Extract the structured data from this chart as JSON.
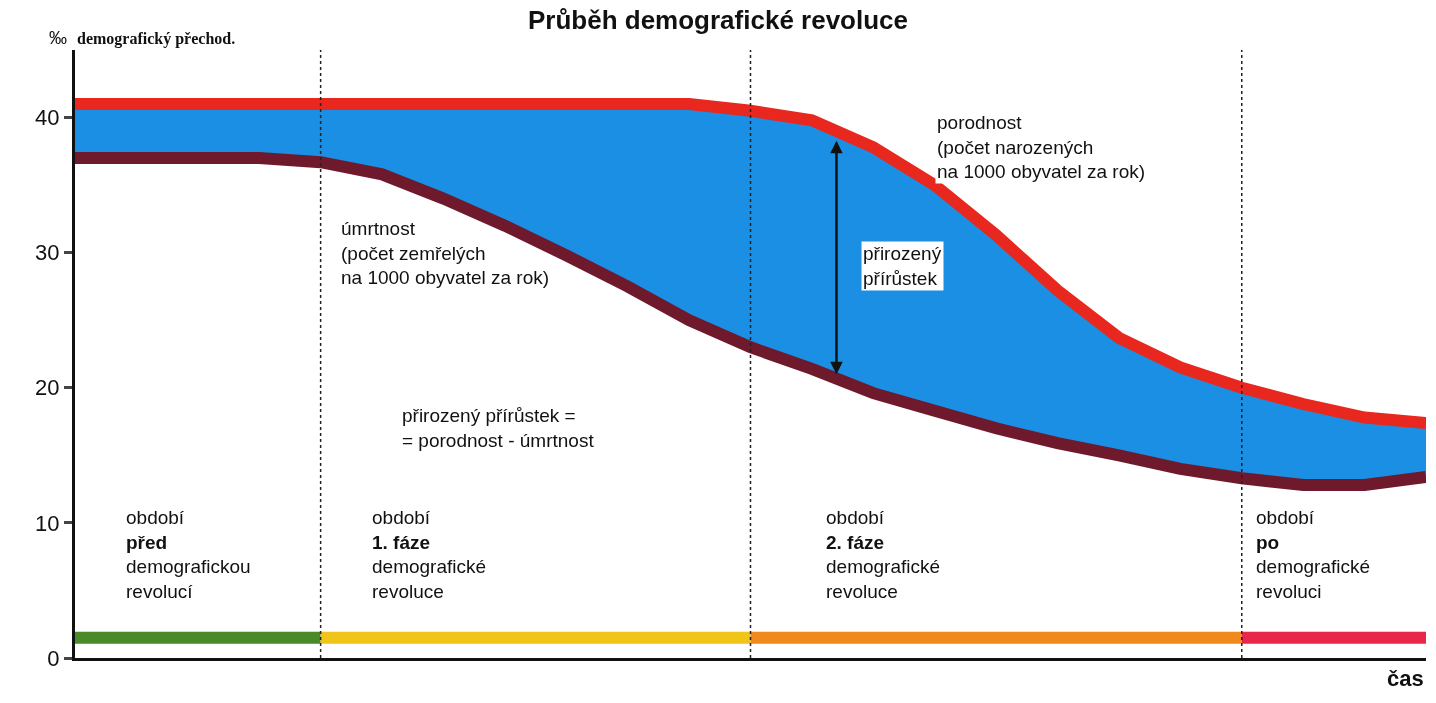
{
  "chart_data": {
    "type": "line",
    "title": "Průběh demografické revoluce",
    "ylabel": "‰",
    "xlabel": "čas",
    "categories": [
      null,
      null,
      null,
      null,
      null,
      null,
      null,
      null,
      null,
      null,
      null,
      null,
      null,
      null,
      null,
      null,
      null,
      null,
      null,
      null,
      null,
      null,
      null
    ],
    "series": [
      {
        "color": "#6e1a2c",
        "values": [
          37,
          37,
          37,
          37,
          36.7,
          35.8,
          34,
          32,
          29.8,
          27.5,
          25,
          23,
          21.4,
          19.6,
          18.3,
          17,
          15.9,
          15,
          14,
          13.3,
          12.8,
          12.8,
          13.4
        ]
      },
      {
        "type": "area",
        "color": "#1a8fe3",
        "values": [
          41,
          41,
          41,
          41,
          41,
          41,
          41,
          41,
          41,
          41,
          41,
          40.5,
          39.8,
          37.8,
          35,
          31.3,
          27.2,
          23.7,
          21.5,
          20,
          18.8,
          17.8,
          17.4
        ]
      },
      {
        "color": "#e8281e",
        "values": [
          41,
          41,
          41,
          41,
          41,
          41,
          41,
          41,
          41,
          41,
          41,
          40.5,
          39.8,
          37.8,
          35,
          31.3,
          27.2,
          23.7,
          21.5,
          20,
          18.8,
          17.8,
          17.4
        ]
      },
      {
        "color": "#4a8a2a",
        "values": [
          1.5,
          1.5,
          1.5,
          1.5,
          1.5,
          null,
          null,
          null,
          null,
          null,
          null,
          null,
          null,
          null,
          null,
          null,
          null,
          null,
          null,
          null,
          null,
          null,
          null
        ]
      },
      {
        "color": "#f0c419",
        "values": [
          null,
          null,
          null,
          null,
          1.5,
          1.5,
          1.5,
          1.5,
          1.5,
          1.5,
          1.5,
          1.5,
          null,
          null,
          null,
          null,
          null,
          null,
          null,
          null,
          null,
          null,
          null
        ]
      },
      {
        "color": "#f08a1e",
        "values": [
          null,
          null,
          null,
          null,
          null,
          null,
          null,
          null,
          null,
          null,
          null,
          1.5,
          1.5,
          1.5,
          1.5,
          1.5,
          1.5,
          1.5,
          1.5,
          1.5,
          null,
          null,
          null
        ]
      },
      {
        "color": "#e8284a",
        "values": [
          null,
          null,
          null,
          null,
          null,
          null,
          null,
          null,
          null,
          null,
          null,
          null,
          null,
          null,
          null,
          null,
          null,
          null,
          null,
          1.5,
          1.5,
          1.5,
          1.5
        ]
      }
    ],
    "ylim": [
      0,
      45
    ],
    "yticks": [
      0,
      10,
      20,
      30,
      40
    ],
    "grid": "x",
    "tick_labels": "y",
    "annotations": [
      "demografický přechod.",
      "porodnost\n(počet narozených\nna 1000 obyvatel za rok)",
      "úmrtnost\n(počet zemřelých\nna 1000 obyvatel za rok)",
      "přirozený\npřírůstek",
      "přirozený přírůstek =\n= porodnost - úmrtnost",
      "období\n**před**\ndemografickou\nrevolucí",
      "období\n**1. fáze**\ndemografické\nrevoluce",
      "období\n**2. fáze**\ndemografické\nrevoluce",
      "období\n**po**\ndemografické\nrevoluci"
    ]
  }
}
